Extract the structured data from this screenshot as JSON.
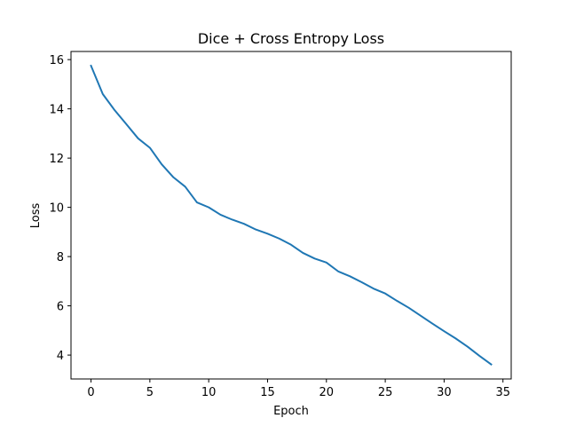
{
  "chart_data": {
    "type": "line",
    "title": "Dice + Cross Entropy Loss",
    "xlabel": "Epoch",
    "ylabel": "Loss",
    "xlim": [
      -1.7,
      35.7
    ],
    "ylim": [
      3.03,
      16.33
    ],
    "xticks": [
      0,
      5,
      10,
      15,
      20,
      25,
      30,
      35
    ],
    "yticks": [
      4,
      6,
      8,
      10,
      12,
      14,
      16
    ],
    "grid": false,
    "series": [
      {
        "color": "#1f77b4",
        "x": [
          0,
          1,
          2,
          3,
          4,
          5,
          6,
          7,
          8,
          9,
          10,
          11,
          12,
          13,
          14,
          15,
          16,
          17,
          18,
          19,
          20,
          21,
          22,
          23,
          24,
          25,
          26,
          27,
          28,
          29,
          30,
          31,
          32,
          33,
          34
        ],
        "values": [
          15.75,
          14.6,
          13.95,
          13.38,
          12.8,
          12.42,
          11.75,
          11.22,
          10.84,
          10.2,
          10.0,
          9.7,
          9.5,
          9.33,
          9.1,
          8.93,
          8.73,
          8.48,
          8.15,
          7.92,
          7.76,
          7.4,
          7.2,
          6.96,
          6.7,
          6.5,
          6.2,
          5.92,
          5.6,
          5.28,
          4.97,
          4.67,
          4.34,
          3.97,
          3.62
        ]
      }
    ]
  }
}
